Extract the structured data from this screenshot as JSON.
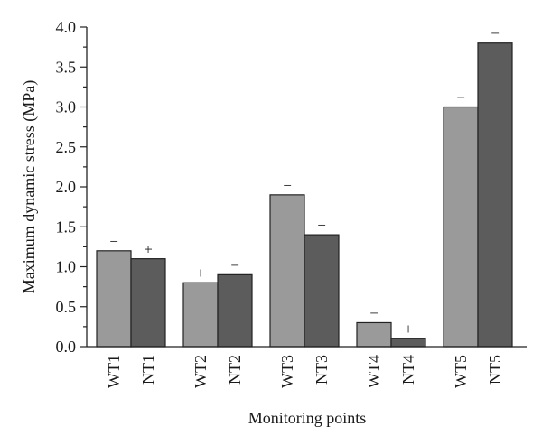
{
  "chart_data": {
    "type": "bar",
    "title": "",
    "xlabel": "Monitoring points",
    "ylabel": "Maximum dynamic stress (MPa)",
    "ylim": [
      0,
      4.0
    ],
    "y_ticks": [
      "0.0",
      "0.5",
      "1.0",
      "1.5",
      "2.0",
      "2.5",
      "3.0",
      "3.5",
      "4.0"
    ],
    "grid": false,
    "legend": "none",
    "bars": [
      {
        "label": "WT1",
        "value": 1.2,
        "sign": "−",
        "color": "#9a9a9a"
      },
      {
        "label": "NT1",
        "value": 1.1,
        "sign": "+",
        "color": "#5c5c5c"
      },
      {
        "label": "WT2",
        "value": 0.8,
        "sign": "+",
        "color": "#9a9a9a"
      },
      {
        "label": "NT2",
        "value": 0.9,
        "sign": "−",
        "color": "#5c5c5c"
      },
      {
        "label": "WT3",
        "value": 1.9,
        "sign": "−",
        "color": "#9a9a9a"
      },
      {
        "label": "NT3",
        "value": 1.4,
        "sign": "−",
        "color": "#5c5c5c"
      },
      {
        "label": "WT4",
        "value": 0.3,
        "sign": "−",
        "color": "#9a9a9a"
      },
      {
        "label": "NT4",
        "value": 0.1,
        "sign": "+",
        "color": "#5c5c5c"
      },
      {
        "label": "WT5",
        "value": 3.0,
        "sign": "−",
        "color": "#9a9a9a"
      },
      {
        "label": "NT5",
        "value": 3.8,
        "sign": "−",
        "color": "#5c5c5c"
      }
    ]
  }
}
